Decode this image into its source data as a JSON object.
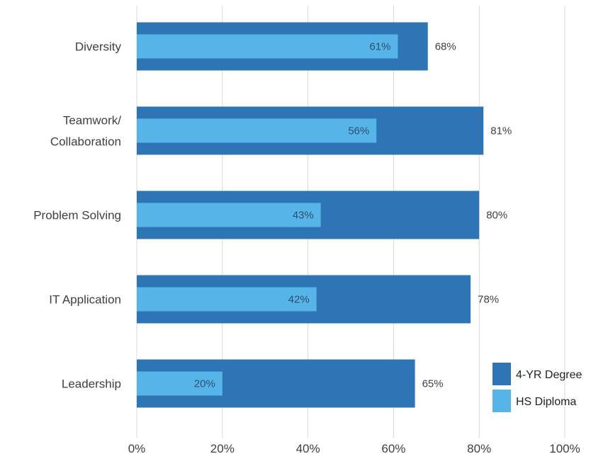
{
  "chart_data": {
    "type": "bar",
    "orientation": "horizontal",
    "categories": [
      "Diversity",
      "Teamwork/\nCollaboration",
      "Problem Solving",
      "IT Application",
      "Leadership"
    ],
    "series": [
      {
        "name": "4-YR Degree",
        "values": [
          68,
          81,
          80,
          78,
          65
        ],
        "labels": [
          "68%",
          "81%",
          "80%",
          "78%",
          "65%"
        ],
        "color": "#2E75B6"
      },
      {
        "name": "HS Diploma",
        "values": [
          61,
          56,
          43,
          42,
          20
        ],
        "labels": [
          "61%",
          "56%",
          "43%",
          "42%",
          "20%"
        ],
        "color": "#56B4E9"
      }
    ],
    "xlim": [
      0,
      100
    ],
    "xticks": [
      "0%",
      "20%",
      "40%",
      "60%",
      "80%",
      "100%"
    ],
    "grid": true,
    "legend": "bottom-right",
    "colors": {
      "grid": "#D9D9D9",
      "text": "#404040"
    }
  }
}
